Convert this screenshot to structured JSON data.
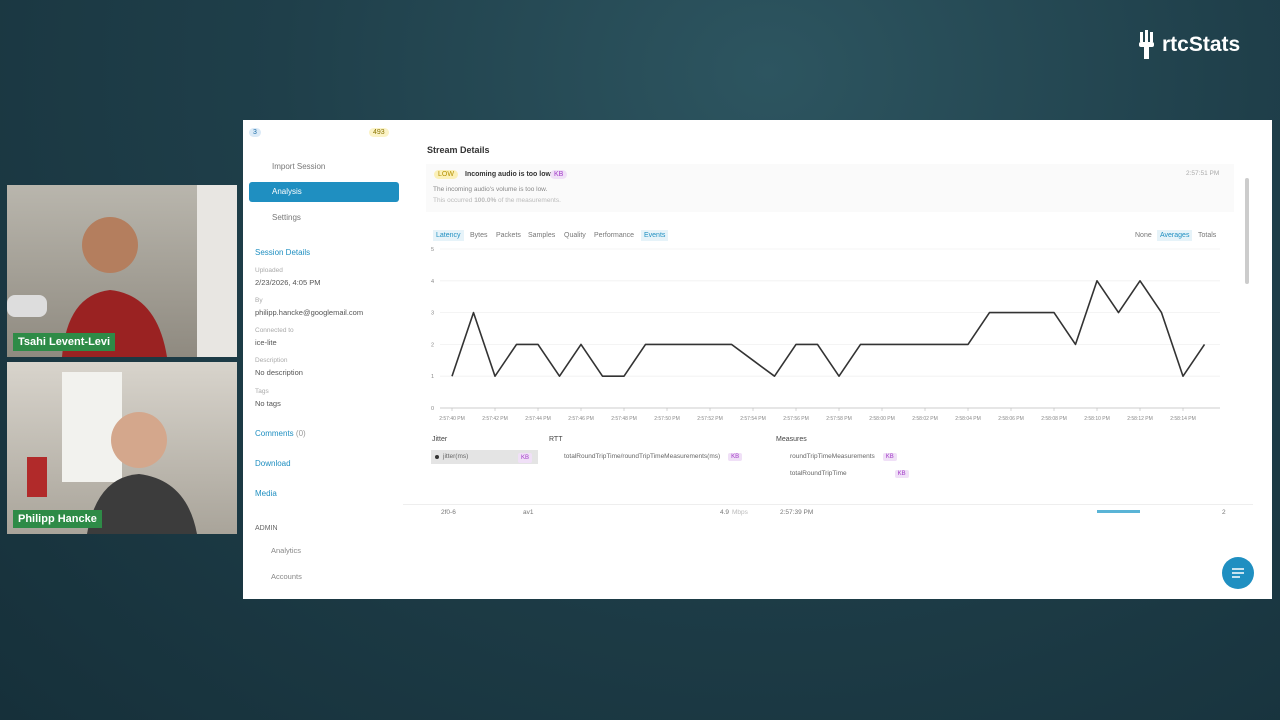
{
  "brand": "rtcStats",
  "participants": [
    {
      "name": "Tsahi Levent-Levi"
    },
    {
      "name": "Philipp Hancke"
    }
  ],
  "sidebar": {
    "badges": [
      "3",
      "493"
    ],
    "nav": [
      "Import Session",
      "Analysis",
      "Settings"
    ],
    "session_title": "Session Details",
    "fields": [
      {
        "label": "Uploaded",
        "value": "2/23/2026, 4:05 PM"
      },
      {
        "label": "By",
        "value": "philipp.hancke@googlemail.com"
      },
      {
        "label": "Connected to",
        "value": "ice-lite"
      },
      {
        "label": "Description",
        "value": "No description"
      },
      {
        "label": "Tags",
        "value": "No tags"
      }
    ],
    "comments": "Comments",
    "comments_count": "(0)",
    "links": [
      "Download",
      "Media"
    ],
    "admin_title": "ADMIN",
    "admin_links": [
      "Analytics",
      "Accounts"
    ]
  },
  "stream": {
    "title": "Stream Details",
    "alert": {
      "level": "LOW",
      "title": "Incoming audio is too low",
      "tag": "KB",
      "time": "2:57:51 PM",
      "text": "The incoming audio's volume is too low.",
      "occurred_prefix": "This occurred",
      "occurred_value": "100.0%",
      "occurred_suffix": "of the measurements."
    },
    "tabs": [
      "Latency",
      "Bytes",
      "Packets",
      "Samples",
      "Quality",
      "Performance",
      "Events"
    ],
    "modes": [
      "None",
      "Averages",
      "Totals"
    ],
    "metric_groups": [
      {
        "title": "RTT",
        "items": [
          {
            "name": "totalRoundTripTime/roundTripTimeMeasurements(ms)",
            "tag": "KB"
          }
        ]
      },
      {
        "title": "Measures",
        "items": [
          {
            "name": "roundTripTimeMeasurements",
            "tag": "KB"
          },
          {
            "name": "totalRoundTripTime",
            "tag": "KB"
          }
        ]
      }
    ],
    "next_row": {
      "id": "2f0-6",
      "codec": "av1",
      "rate": "4.9",
      "unit": "Mbps",
      "time": "2:57:39 PM",
      "count": "2"
    }
  },
  "chart_data": {
    "type": "line",
    "legend_title": "Jitter",
    "legend_tag": "KB",
    "categories": [
      "2:57:40 PM",
      null,
      "2:57:42 PM",
      null,
      "2:57:44 PM",
      null,
      "2:57:46 PM",
      null,
      "2:57:48 PM",
      null,
      "2:57:50 PM",
      null,
      "2:57:52 PM",
      null,
      "2:57:54 PM",
      null,
      "2:57:56 PM",
      null,
      "2:57:58 PM",
      null,
      "2:58:00 PM",
      null,
      "2:58:02 PM",
      null,
      "2:58:04 PM",
      null,
      "2:58:06 PM",
      null,
      "2:58:08 PM",
      null,
      "2:58:10 PM",
      null,
      "2:58:12 PM",
      null,
      "2:58:14 PM",
      null
    ],
    "series": [
      {
        "name": "jitter(ms)",
        "color": "#333333",
        "values": [
          1,
          3,
          1,
          2,
          2,
          1,
          2,
          1,
          1,
          2,
          2,
          2,
          2,
          2,
          1.5,
          1,
          2,
          2,
          1,
          2,
          2,
          2,
          2,
          2,
          2,
          3,
          3,
          3,
          3,
          2,
          4,
          3,
          4,
          3,
          1,
          2
        ]
      }
    ],
    "ylim": [
      0,
      5
    ],
    "yticks": [
      0,
      1,
      2,
      3,
      4,
      5
    ],
    "grid": true
  }
}
